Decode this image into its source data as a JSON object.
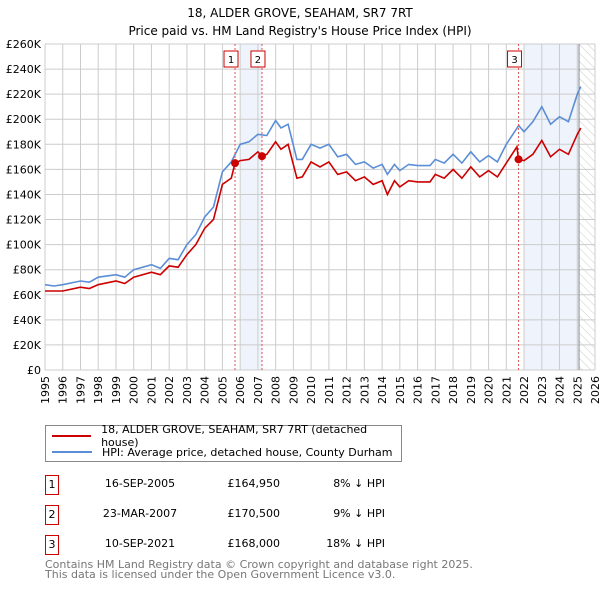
{
  "chart_data": {
    "type": "line",
    "title": "18, ALDER GROVE, SEAHAM, SR7 7RT",
    "subtitle": "Price paid vs. HM Land Registry's House Price Index (HPI)",
    "xlim": [
      1995,
      2026
    ],
    "ylim": [
      0,
      260
    ],
    "x_ticks": [
      "1995",
      "1996",
      "1997",
      "1998",
      "1999",
      "2000",
      "2001",
      "2002",
      "2003",
      "2004",
      "2005",
      "2006",
      "2007",
      "2008",
      "2009",
      "2010",
      "2011",
      "2012",
      "2013",
      "2014",
      "2015",
      "2016",
      "2017",
      "2018",
      "2019",
      "2020",
      "2021",
      "2022",
      "2023",
      "2024",
      "2025",
      "2026"
    ],
    "y_ticks": [
      "£0",
      "£20K",
      "£40K",
      "£60K",
      "£80K",
      "£100K",
      "£120K",
      "£140K",
      "£160K",
      "£180K",
      "£200K",
      "£220K",
      "£240K",
      "£260K"
    ],
    "grid": true,
    "series": [
      {
        "name": "18, ALDER GROVE, SEAHAM, SR7 7RT (detached house)",
        "color": "#cc0000",
        "x": [
          1995,
          1996,
          1997,
          1997.5,
          1998,
          1999,
          1999.5,
          2000,
          2001,
          2001.5,
          2002,
          2002.5,
          2003,
          2003.5,
          2004,
          2004.5,
          2005,
          2005.5,
          2005.71,
          2006,
          2006.5,
          2007,
          2007.23,
          2007.5,
          2008,
          2008.3,
          2008.7,
          2009.2,
          2009.5,
          2010,
          2010.5,
          2011,
          2011.5,
          2012,
          2012.5,
          2013,
          2013.5,
          2014,
          2014.3,
          2014.7,
          2015,
          2015.5,
          2016,
          2016.7,
          2017,
          2017.5,
          2018,
          2018.5,
          2019,
          2019.5,
          2020,
          2020.5,
          2021,
          2021.6,
          2021.69,
          2022,
          2022.5,
          2023,
          2023.5,
          2024,
          2024.5,
          2025,
          2025.2
        ],
        "values": [
          63,
          63,
          66,
          65,
          68,
          71,
          69,
          74,
          78,
          76,
          83,
          82,
          92,
          100,
          113,
          120,
          148,
          153,
          165,
          167,
          168,
          174,
          170.5,
          172,
          182,
          176,
          180,
          153,
          154,
          166,
          162,
          166,
          156,
          158,
          151,
          154,
          148,
          151,
          140,
          151,
          146,
          151,
          150,
          150,
          156,
          153,
          160,
          153,
          162,
          154,
          159,
          154,
          165,
          178,
          168,
          167,
          172,
          183,
          170,
          176,
          172,
          188,
          193
        ]
      },
      {
        "name": "HPI: Average price, detached house, County Durham",
        "color": "#5b8ed6",
        "x": [
          1995,
          1995.5,
          1996,
          1997,
          1997.5,
          1998,
          1999,
          1999.5,
          2000,
          2001,
          2001.5,
          2002,
          2002.5,
          2003,
          2003.5,
          2004,
          2004.5,
          2005,
          2005.5,
          2006,
          2006.5,
          2007,
          2007.5,
          2008,
          2008.3,
          2008.7,
          2009.2,
          2009.5,
          2010,
          2010.5,
          2011,
          2011.5,
          2012,
          2012.5,
          2013,
          2013.5,
          2014,
          2014.3,
          2014.7,
          2015,
          2015.5,
          2016,
          2016.7,
          2017,
          2017.5,
          2018,
          2018.5,
          2019,
          2019.5,
          2020,
          2020.5,
          2021,
          2021.7,
          2022,
          2022.5,
          2023,
          2023.5,
          2024,
          2024.5,
          2025,
          2025.2
        ],
        "values": [
          68,
          67,
          68,
          71,
          70,
          74,
          76,
          74,
          80,
          84,
          81,
          89,
          88,
          100,
          108,
          122,
          130,
          158,
          166,
          180,
          182,
          188,
          187,
          199,
          193,
          196,
          168,
          168,
          180,
          177,
          180,
          170,
          172,
          164,
          166,
          161,
          164,
          156,
          164,
          159,
          164,
          163,
          163,
          168,
          165,
          172,
          165,
          174,
          166,
          171,
          166,
          180,
          195,
          190,
          198,
          210,
          196,
          202,
          198,
          220,
          226
        ]
      }
    ],
    "sales": [
      {
        "label": "1",
        "x": 2005.71,
        "value": 164.95
      },
      {
        "label": "2",
        "x": 2007.23,
        "value": 170.5
      },
      {
        "label": "3",
        "x": 2021.69,
        "value": 168
      }
    ],
    "shaded_ranges": [
      [
        2006,
        2007.23
      ],
      [
        2022,
        2025.1
      ]
    ],
    "forecast_from": 2025.1
  },
  "legend": {
    "red": "18, ALDER GROVE, SEAHAM, SR7 7RT (detached house)",
    "blue": "HPI: Average price, detached house, County Durham"
  },
  "table": [
    {
      "num": "1",
      "date": "16-SEP-2005",
      "price": "£164,950",
      "hpi": "8% ↓ HPI"
    },
    {
      "num": "2",
      "date": "23-MAR-2007",
      "price": "£170,500",
      "hpi": "9% ↓ HPI"
    },
    {
      "num": "3",
      "date": "10-SEP-2021",
      "price": "£168,000",
      "hpi": "18% ↓ HPI"
    }
  ],
  "footer": {
    "line1": "Contains HM Land Registry data © Crown copyright and database right 2025.",
    "line2": "This data is licensed under the Open Government Licence v3.0."
  }
}
